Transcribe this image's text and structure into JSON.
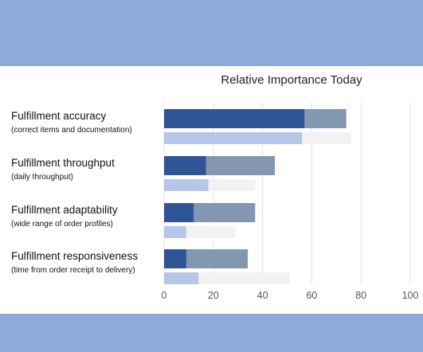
{
  "chart_data": {
    "type": "bar",
    "title": "Relative Importance Today",
    "categories": [
      {
        "label": "Fulfillment accuracy",
        "sub": "(correct items and documentation)"
      },
      {
        "label": "Fulfillment throughput",
        "sub": "(daily throughput)"
      },
      {
        "label": "Fulfillment adaptability",
        "sub": "(wide range of order profiles)"
      },
      {
        "label": "Fulfillment responsiveness",
        "sub": "(time from order receipt to delivery)"
      }
    ],
    "series": [
      {
        "values": [
          57,
          17,
          12,
          9
        ],
        "color": "#2f5597",
        "position": "upper"
      },
      {
        "values": [
          74,
          45,
          37,
          34
        ],
        "color": "#8497b0",
        "position": "upper",
        "stacked_behind": true
      },
      {
        "values": [
          56,
          18,
          9,
          14
        ],
        "color": "#b4c7e7",
        "position": "lower"
      },
      {
        "values": [
          76,
          37,
          29,
          51
        ],
        "color": "#f2f2f2",
        "position": "lower",
        "stacked_behind": true
      }
    ],
    "xlim": [
      0,
      100
    ],
    "xticks": [
      0,
      20,
      40,
      60,
      80,
      100
    ],
    "grid": true,
    "legend": "none"
  }
}
